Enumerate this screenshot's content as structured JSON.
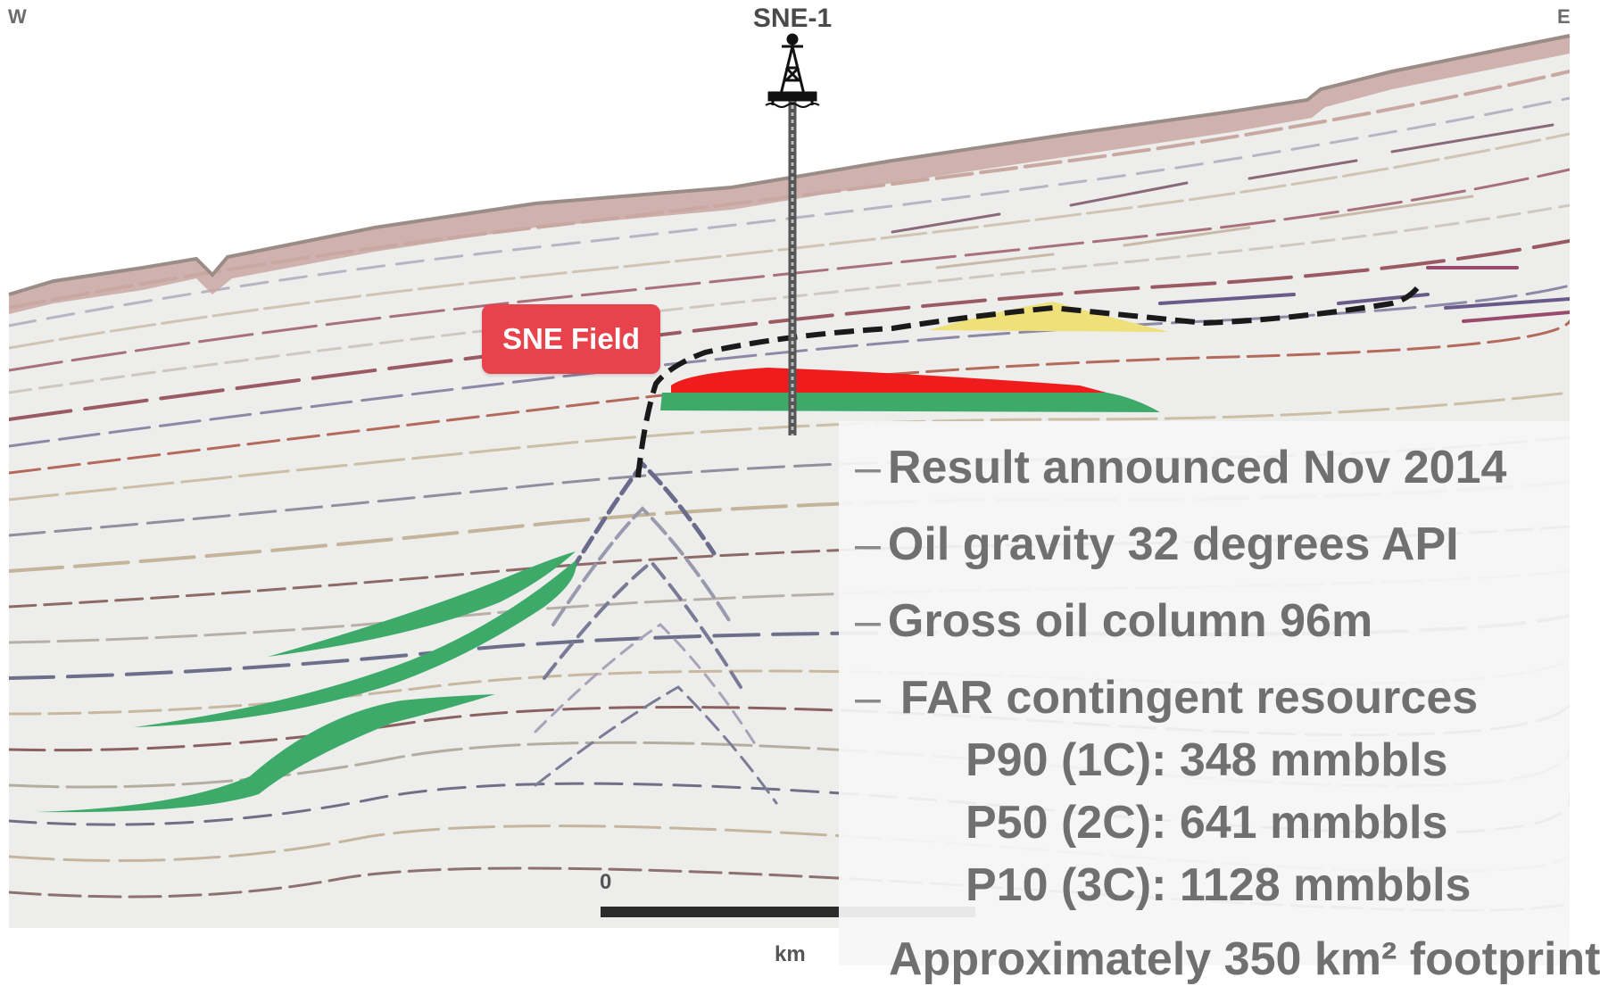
{
  "compass": {
    "west": "W",
    "east": "E"
  },
  "well": {
    "name": "SNE-1"
  },
  "field": {
    "label": "SNE Field"
  },
  "info": {
    "bullets": [
      {
        "dash": "–",
        "text": "Result announced Nov 2014"
      },
      {
        "dash": "–",
        "text": "Oil gravity 32 degrees API"
      },
      {
        "dash": "–",
        "text": "Gross oil column 96m"
      },
      {
        "dash": "–",
        "text": "FAR contingent resources"
      }
    ],
    "resources": [
      "P90 (1C): 348 mmbbls",
      "P50 (2C): 641 mmbbls",
      "P10 (3C): 1128 mmbbls"
    ],
    "cut_off_line": "Approximately 350 km² footprint"
  },
  "scale": {
    "zero": "0",
    "unit": "km"
  },
  "colors": {
    "oil": "#ee1c1c",
    "reservoir": "#3daa6a",
    "gas_cap": "#efe07a",
    "field_label": "#e8434c",
    "seabed": "#9a8c86",
    "trap_outline": "#1a1a1a"
  }
}
